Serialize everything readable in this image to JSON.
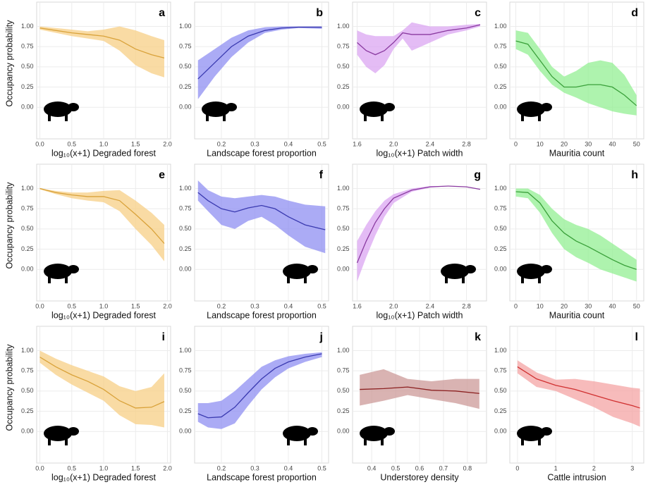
{
  "chart_data": [
    {
      "type": "line",
      "panel_label": "a",
      "ylabel": "Occupancy probability",
      "xlabel": "log₁₀(x+1) Degraded forest",
      "color": "#d9a23a",
      "band_color": "#f7cf86",
      "x": [
        0,
        0.25,
        0.5,
        0.75,
        1.0,
        1.25,
        1.5,
        1.75,
        1.95
      ],
      "values": [
        0.98,
        0.95,
        0.92,
        0.9,
        0.88,
        0.83,
        0.72,
        0.65,
        0.61
      ],
      "lower": [
        0.96,
        0.92,
        0.88,
        0.85,
        0.82,
        0.7,
        0.52,
        0.42,
        0.37
      ],
      "upper": [
        1.0,
        0.98,
        0.96,
        0.94,
        0.96,
        1.0,
        0.95,
        0.88,
        0.83
      ],
      "xlim": [
        -0.05,
        2.05
      ],
      "xticks": [
        {
          "value": 0,
          "label": "0.0"
        },
        0.5,
        {
          "value": 1,
          "label": "1.0"
        },
        1.5,
        {
          "value": 2,
          "label": "2.0"
        }
      ],
      "ylim": [
        -0.39,
        1.3
      ],
      "yticks": [
        {
          "value": 0,
          "label": "0.00"
        },
        0.25,
        {
          "value": 0.5,
          "label": "0.50"
        },
        0.75,
        {
          "value": 1,
          "label": "1.00"
        }
      ],
      "grid": true
    },
    {
      "type": "line",
      "panel_label": "b",
      "xlabel": "Landscape forest proportion",
      "color": "#3a3ab0",
      "band_color": "#8f8ff2",
      "x": [
        0.13,
        0.18,
        0.23,
        0.28,
        0.33,
        0.38,
        0.43,
        0.5
      ],
      "values": [
        0.35,
        0.55,
        0.75,
        0.88,
        0.95,
        0.98,
        0.99,
        0.99
      ],
      "lower": [
        0.1,
        0.38,
        0.62,
        0.8,
        0.92,
        0.96,
        0.98,
        0.97
      ],
      "upper": [
        0.58,
        0.72,
        0.86,
        0.95,
        0.99,
        1.0,
        1.0,
        1.0
      ],
      "xlim": [
        0.12,
        0.52
      ],
      "xticks": [
        0.2,
        0.3,
        0.4,
        0.5
      ],
      "ylim": [
        -0.39,
        1.3
      ],
      "yticks": [
        {
          "value": 0,
          "label": "0.00"
        },
        0.25,
        {
          "value": 0.5,
          "label": "0.50"
        },
        0.75,
        {
          "value": 1,
          "label": "1.00"
        }
      ],
      "grid": true
    },
    {
      "type": "line",
      "panel_label": "c",
      "xlabel": "log₁₀(x+1) Patch width",
      "color": "#8a3aa0",
      "band_color": "#dba6f2",
      "x": [
        1.6,
        1.7,
        1.8,
        1.9,
        2.0,
        2.1,
        2.2,
        2.4,
        2.6,
        2.8,
        2.95
      ],
      "values": [
        0.8,
        0.7,
        0.65,
        0.7,
        0.8,
        0.92,
        0.9,
        0.9,
        0.95,
        0.98,
        1.02
      ],
      "lower": [
        0.65,
        0.5,
        0.42,
        0.52,
        0.72,
        0.85,
        0.7,
        0.8,
        0.9,
        0.95,
        1.0
      ],
      "upper": [
        0.95,
        0.9,
        0.88,
        0.88,
        0.88,
        0.95,
        1.05,
        1.0,
        1.0,
        1.02,
        1.03
      ],
      "xlim": [
        1.55,
        3.02
      ],
      "xticks": [
        1.6,
        {
          "value": 2,
          "label": "2.0"
        },
        2.4,
        2.8
      ],
      "ylim": [
        -0.39,
        1.3
      ],
      "yticks": [
        {
          "value": 0,
          "label": "0.00"
        },
        0.25,
        {
          "value": 0.5,
          "label": "0.50"
        },
        0.75,
        {
          "value": 1,
          "label": "1.00"
        }
      ],
      "grid": true
    },
    {
      "type": "line",
      "panel_label": "d",
      "xlabel": "Mauritia count",
      "color": "#3aa03a",
      "band_color": "#93ef93",
      "x": [
        0,
        5,
        10,
        15,
        20,
        25,
        30,
        35,
        40,
        45,
        50
      ],
      "values": [
        0.82,
        0.78,
        0.58,
        0.38,
        0.25,
        0.25,
        0.28,
        0.28,
        0.25,
        0.15,
        0.02
      ],
      "lower": [
        0.72,
        0.65,
        0.45,
        0.28,
        0.18,
        0.12,
        0.05,
        0.0,
        -0.05,
        -0.08,
        -0.1
      ],
      "upper": [
        0.95,
        0.92,
        0.72,
        0.5,
        0.38,
        0.45,
        0.55,
        0.58,
        0.55,
        0.4,
        0.15
      ],
      "xlim": [
        -2.5,
        53
      ],
      "xticks": [
        0,
        10,
        20,
        30,
        40,
        50
      ],
      "ylim": [
        -0.39,
        1.3
      ],
      "yticks": [
        {
          "value": 0,
          "label": "0.00"
        },
        0.25,
        {
          "value": 0.5,
          "label": "0.50"
        },
        0.75,
        {
          "value": 1,
          "label": "1.00"
        }
      ],
      "grid": true
    },
    {
      "type": "line",
      "panel_label": "e",
      "ylabel": "Occupancy probability",
      "xlabel": "log₁₀(x+1) Degraded forest",
      "color": "#d9a23a",
      "band_color": "#f7cf86",
      "x": [
        0,
        0.25,
        0.5,
        0.75,
        1.0,
        1.25,
        1.5,
        1.75,
        1.95
      ],
      "values": [
        1.0,
        0.95,
        0.92,
        0.9,
        0.9,
        0.85,
        0.68,
        0.5,
        0.32
      ],
      "lower": [
        0.99,
        0.93,
        0.88,
        0.85,
        0.83,
        0.72,
        0.5,
        0.3,
        0.1
      ],
      "upper": [
        1.0,
        0.97,
        0.95,
        0.95,
        0.97,
        0.98,
        0.85,
        0.7,
        0.55
      ],
      "xlim": [
        -0.05,
        2.05
      ],
      "xticks": [
        {
          "value": 0,
          "label": "0.0"
        },
        0.5,
        {
          "value": 1,
          "label": "1.0"
        },
        1.5,
        {
          "value": 2,
          "label": "2.0"
        }
      ],
      "ylim": [
        -0.39,
        1.3
      ],
      "yticks": [
        {
          "value": 0,
          "label": "0.00"
        },
        0.25,
        {
          "value": 0.5,
          "label": "0.50"
        },
        0.75,
        {
          "value": 1,
          "label": "1.00"
        }
      ],
      "grid": true
    },
    {
      "type": "line",
      "panel_label": "f",
      "xlabel": "Landscape forest proportion",
      "color": "#3a3ab0",
      "band_color": "#8f8ff2",
      "x": [
        0.13,
        0.16,
        0.2,
        0.24,
        0.28,
        0.32,
        0.36,
        0.4,
        0.45,
        0.51
      ],
      "values": [
        0.95,
        0.85,
        0.75,
        0.71,
        0.76,
        0.79,
        0.75,
        0.65,
        0.55,
        0.49
      ],
      "lower": [
        0.85,
        0.72,
        0.55,
        0.5,
        0.6,
        0.65,
        0.55,
        0.42,
        0.28,
        0.2
      ],
      "upper": [
        1.1,
        0.98,
        0.9,
        0.88,
        0.9,
        0.92,
        0.9,
        0.85,
        0.8,
        0.78
      ],
      "xlim": [
        0.12,
        0.52
      ],
      "xticks": [
        0.2,
        0.3,
        0.4,
        0.5
      ],
      "ylim": [
        -0.39,
        1.3
      ],
      "yticks": [
        {
          "value": 0,
          "label": "0.00"
        },
        0.25,
        {
          "value": 0.5,
          "label": "0.50"
        },
        0.75,
        {
          "value": 1,
          "label": "1.00"
        }
      ],
      "grid": true
    },
    {
      "type": "line",
      "panel_label": "g",
      "xlabel": "log₁₀(x+1) Patch width",
      "color": "#8a3aa0",
      "band_color": "#dba6f2",
      "x": [
        1.6,
        1.7,
        1.8,
        1.9,
        2.0,
        2.2,
        2.4,
        2.6,
        2.8,
        2.95
      ],
      "values": [
        0.08,
        0.35,
        0.58,
        0.75,
        0.88,
        0.98,
        1.02,
        1.03,
        1.02,
        0.99
      ],
      "lower": [
        -0.15,
        0.15,
        0.42,
        0.65,
        0.82,
        0.96,
        1.01,
        1.03,
        1.02,
        0.99
      ],
      "upper": [
        0.35,
        0.55,
        0.72,
        0.85,
        0.93,
        1.0,
        1.03,
        1.03,
        1.02,
        0.99
      ],
      "xlim": [
        1.55,
        3.02
      ],
      "xticks": [
        1.6,
        {
          "value": 2,
          "label": "2.0"
        },
        2.4,
        2.8
      ],
      "ylim": [
        -0.39,
        1.3
      ],
      "yticks": [
        {
          "value": 0,
          "label": "0.00"
        },
        0.25,
        {
          "value": 0.5,
          "label": "0.50"
        },
        0.75,
        {
          "value": 1,
          "label": "1.00"
        }
      ],
      "grid": true
    },
    {
      "type": "line",
      "panel_label": "h",
      "xlabel": "Mauritia count",
      "color": "#3aa03a",
      "band_color": "#93ef93",
      "x": [
        0,
        5,
        10,
        15,
        20,
        25,
        30,
        35,
        40,
        45,
        50
      ],
      "values": [
        0.96,
        0.95,
        0.82,
        0.6,
        0.45,
        0.35,
        0.28,
        0.2,
        0.12,
        0.05,
        0.0
      ],
      "lower": [
        0.9,
        0.88,
        0.7,
        0.45,
        0.25,
        0.15,
        0.08,
        0.0,
        -0.05,
        -0.1,
        -0.15
      ],
      "upper": [
        1.0,
        1.0,
        0.92,
        0.75,
        0.62,
        0.55,
        0.5,
        0.42,
        0.32,
        0.22,
        0.12
      ],
      "xlim": [
        -2.5,
        53
      ],
      "xticks": [
        0,
        10,
        20,
        30,
        40,
        50
      ],
      "ylim": [
        -0.39,
        1.3
      ],
      "yticks": [
        {
          "value": 0,
          "label": "0.00"
        },
        0.25,
        {
          "value": 0.5,
          "label": "0.50"
        },
        0.75,
        {
          "value": 1,
          "label": "1.00"
        }
      ],
      "grid": true
    },
    {
      "type": "line",
      "panel_label": "i",
      "ylabel": "Occupancy probability",
      "xlabel": "log₁₀(x+1) Degraded forest",
      "color": "#d9a23a",
      "band_color": "#f7cf86",
      "x": [
        0,
        0.25,
        0.5,
        0.75,
        1.0,
        1.25,
        1.5,
        1.75,
        1.95
      ],
      "values": [
        0.92,
        0.8,
        0.7,
        0.62,
        0.52,
        0.38,
        0.29,
        0.3,
        0.37
      ],
      "lower": [
        0.85,
        0.7,
        0.58,
        0.48,
        0.38,
        0.2,
        0.09,
        0.08,
        0.05
      ],
      "upper": [
        1.0,
        0.9,
        0.82,
        0.75,
        0.68,
        0.56,
        0.5,
        0.55,
        0.72
      ],
      "xlim": [
        -0.05,
        2.05
      ],
      "xticks": [
        {
          "value": 0,
          "label": "0.0"
        },
        0.5,
        {
          "value": 1,
          "label": "1.0"
        },
        1.5,
        {
          "value": 2,
          "label": "2.0"
        }
      ],
      "ylim": [
        -0.39,
        1.3
      ],
      "yticks": [
        {
          "value": 0,
          "label": "0.00"
        },
        0.25,
        {
          "value": 0.5,
          "label": "0.50"
        },
        0.75,
        {
          "value": 1,
          "label": "1.00"
        }
      ],
      "grid": true
    },
    {
      "type": "line",
      "panel_label": "j",
      "xlabel": "Landscape forest proportion",
      "color": "#3a3ab0",
      "band_color": "#8f8ff2",
      "x": [
        0.13,
        0.16,
        0.2,
        0.24,
        0.28,
        0.32,
        0.36,
        0.4,
        0.45,
        0.5
      ],
      "values": [
        0.22,
        0.17,
        0.18,
        0.3,
        0.48,
        0.65,
        0.78,
        0.86,
        0.92,
        0.96
      ],
      "lower": [
        0.12,
        0.05,
        0.03,
        0.1,
        0.32,
        0.52,
        0.67,
        0.78,
        0.86,
        0.92
      ],
      "upper": [
        0.35,
        0.35,
        0.38,
        0.5,
        0.65,
        0.8,
        0.88,
        0.93,
        0.96,
        0.98
      ],
      "xlim": [
        0.12,
        0.52
      ],
      "xticks": [
        0.2,
        0.3,
        0.4,
        0.5
      ],
      "ylim": [
        -0.39,
        1.3
      ],
      "yticks": [
        {
          "value": 0,
          "label": "0.00"
        },
        0.25,
        {
          "value": 0.5,
          "label": "0.50"
        },
        0.75,
        {
          "value": 1,
          "label": "1.00"
        }
      ],
      "grid": true
    },
    {
      "type": "line",
      "panel_label": "k",
      "xlabel": "Understorey density",
      "color": "#8b2020",
      "band_color": "#cc9a98",
      "x": [
        0.35,
        0.45,
        0.55,
        0.65,
        0.75,
        0.85
      ],
      "values": [
        0.52,
        0.53,
        0.55,
        0.51,
        0.5,
        0.47
      ],
      "lower": [
        0.32,
        0.38,
        0.45,
        0.4,
        0.35,
        0.28
      ],
      "upper": [
        0.7,
        0.77,
        0.65,
        0.62,
        0.65,
        0.65
      ],
      "xlim": [
        0.32,
        0.88
      ],
      "xticks": [
        0.4,
        0.5,
        0.6,
        0.7,
        0.8
      ],
      "ylim": [
        -0.39,
        1.3
      ],
      "yticks": [
        {
          "value": 0,
          "label": "0.00"
        },
        0.25,
        {
          "value": 0.5,
          "label": "0.50"
        },
        0.75,
        {
          "value": 1,
          "label": "1.00"
        }
      ],
      "grid": true
    },
    {
      "type": "line",
      "panel_label": "l",
      "xlabel": "Cattle intrusion",
      "color": "#d03030",
      "band_color": "#f4a4a4",
      "x": [
        0,
        0.5,
        1.0,
        1.5,
        2.0,
        2.5,
        3.0,
        3.2
      ],
      "values": [
        0.8,
        0.65,
        0.57,
        0.52,
        0.45,
        0.38,
        0.32,
        0.29
      ],
      "lower": [
        0.72,
        0.55,
        0.5,
        0.4,
        0.3,
        0.18,
        0.1,
        0.06
      ],
      "upper": [
        0.88,
        0.73,
        0.64,
        0.65,
        0.62,
        0.58,
        0.54,
        0.53
      ],
      "xlim": [
        -0.2,
        3.3
      ],
      "xticks": [
        0,
        1,
        2,
        3
      ],
      "ylim": [
        -0.39,
        1.3
      ],
      "yticks": [
        {
          "value": 0,
          "label": "0.00"
        },
        0.25,
        {
          "value": 0.5,
          "label": "0.50"
        },
        0.75,
        {
          "value": 1,
          "label": "1.00"
        }
      ],
      "grid": true
    }
  ]
}
